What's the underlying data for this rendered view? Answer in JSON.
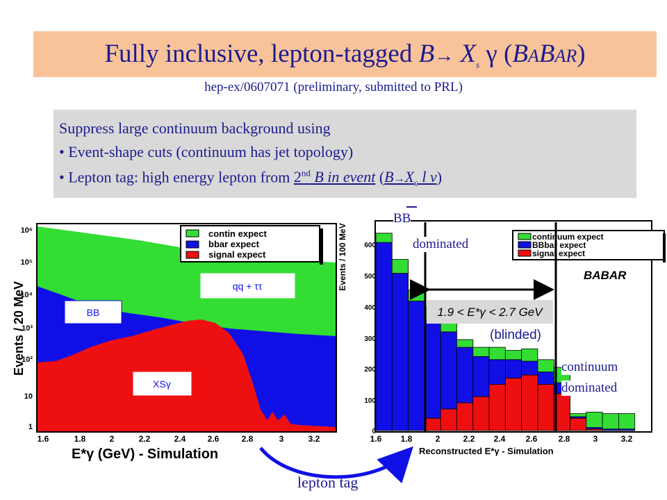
{
  "title": {
    "pre": "Fully inclusive, lepton-tagged ",
    "b": "B",
    "arrow": "→",
    "x": "X",
    "s": "s",
    "gamma": "γ",
    "paren_open": "(",
    "babar_b1": "B",
    "babar_a1": "A",
    "babar_b2": "B",
    "babar_a2": "A",
    "babar_r": "R",
    "paren_close": ")"
  },
  "subtitle": "hep-ex/0607071 (preliminary, submitted to PRL)",
  "box": {
    "line1": "Suppress large continuum background using",
    "bullet": "•",
    "line2": "Event-shape cuts (continuum has jet topology)",
    "line3_pre": "Lepton tag: high energy lepton from ",
    "line3_ord": "2",
    "line3_sup": "nd",
    "line3_u": " B in event",
    "line3_post1": " (",
    "line3_b": "B",
    "line3_arrow": "→",
    "line3_x": "X",
    "line3_c": "c",
    "line3_l": " l ν",
    "line3_post2": ")"
  },
  "left_plot": {
    "ylabel": "Events / 20 MeV",
    "xlabel": "E*γ (GeV) - Simulation",
    "yticks": [
      "1",
      "10",
      "10²",
      "10³",
      "10⁴",
      "10⁵",
      "10⁶"
    ],
    "xticks": [
      "1.6",
      "1.8",
      "2",
      "2.2",
      "2.4",
      "2.6",
      "2.8",
      "3",
      "3.2"
    ],
    "legend": [
      "contin expect",
      "bbar expect",
      "signal expect"
    ],
    "label_qq": "qq + ττ",
    "label_bb": "BB",
    "label_xs": "XSγ",
    "colors": {
      "green": "#33dd33",
      "blue": "#1010e6",
      "red": "#ee1010"
    }
  },
  "right_plot": {
    "ylabel": "Events / 100 MeV",
    "xlabel": "Reconstructed E*γ - Simulation",
    "yticks": [
      "0",
      "100",
      "200",
      "300",
      "400",
      "500",
      "600"
    ],
    "xticks": [
      "1.6",
      "1.8",
      "2",
      "2.2",
      "2.4",
      "2.6",
      "2.8",
      "3",
      "3.2"
    ],
    "legend": [
      "continuum expect",
      "BBbar expect",
      "signal expect"
    ],
    "babar": "BABAR",
    "window": "1.9 < E*γ < 2.7 GeV",
    "blinded": "(blinded)",
    "bins": [
      1.65,
      1.75,
      1.85,
      1.95,
      2.05,
      2.15,
      2.25,
      2.35,
      2.45,
      2.55,
      2.65,
      2.75,
      2.85,
      2.95,
      3.05,
      3.15
    ],
    "signal": [
      0,
      0,
      0,
      40,
      70,
      90,
      110,
      150,
      170,
      180,
      150,
      120,
      40,
      5,
      0,
      0
    ],
    "bbbar": [
      610,
      510,
      420,
      320,
      250,
      180,
      130,
      80,
      60,
      45,
      40,
      35,
      5,
      5,
      5,
      5
    ],
    "continuum": [
      30,
      45,
      35,
      40,
      30,
      25,
      30,
      40,
      30,
      40,
      40,
      50,
      10,
      50,
      50,
      50
    ]
  },
  "annotations": {
    "bb_dominated_1": "BB",
    "bb_dominated_2": "dominated",
    "cont_dominated_1": "continuum",
    "cont_dominated_2": "dominated",
    "lepton_tag": "lepton tag"
  }
}
